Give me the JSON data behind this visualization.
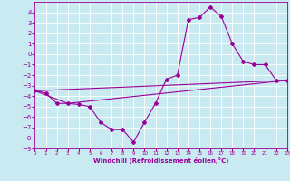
{
  "title": "",
  "xlabel": "Windchill (Refroidissement éolien,°C)",
  "ylabel": "",
  "bg_color": "#c8eaf0",
  "grid_color": "#ffffff",
  "line_color": "#990099",
  "marker": "D",
  "markersize": 2.0,
  "linewidth": 0.8,
  "xlim": [
    0,
    23
  ],
  "ylim": [
    -9,
    5
  ],
  "xticks": [
    0,
    1,
    2,
    3,
    4,
    5,
    6,
    7,
    8,
    9,
    10,
    11,
    12,
    13,
    14,
    15,
    16,
    17,
    18,
    19,
    20,
    21,
    22,
    23
  ],
  "yticks": [
    -9,
    -8,
    -7,
    -6,
    -5,
    -4,
    -3,
    -2,
    -1,
    0,
    1,
    2,
    3,
    4
  ],
  "series": [
    {
      "x": [
        0,
        1,
        2,
        3,
        4,
        5,
        6,
        7,
        8,
        9,
        10,
        11,
        12,
        13,
        14,
        15,
        16,
        17,
        18,
        19,
        20,
        21,
        22,
        23
      ],
      "y": [
        -3.5,
        -3.7,
        -4.7,
        -4.7,
        -4.8,
        -5.0,
        -6.5,
        -7.2,
        -7.2,
        -8.4,
        -6.5,
        -4.7,
        -2.4,
        -2.0,
        3.3,
        3.5,
        4.5,
        3.6,
        1.0,
        -0.7,
        -1.0,
        -1.0,
        -2.5,
        -2.5
      ]
    },
    {
      "x": [
        0,
        3,
        23
      ],
      "y": [
        -3.5,
        -4.7,
        -2.5
      ]
    },
    {
      "x": [
        0,
        23
      ],
      "y": [
        -3.5,
        -2.5
      ]
    }
  ]
}
